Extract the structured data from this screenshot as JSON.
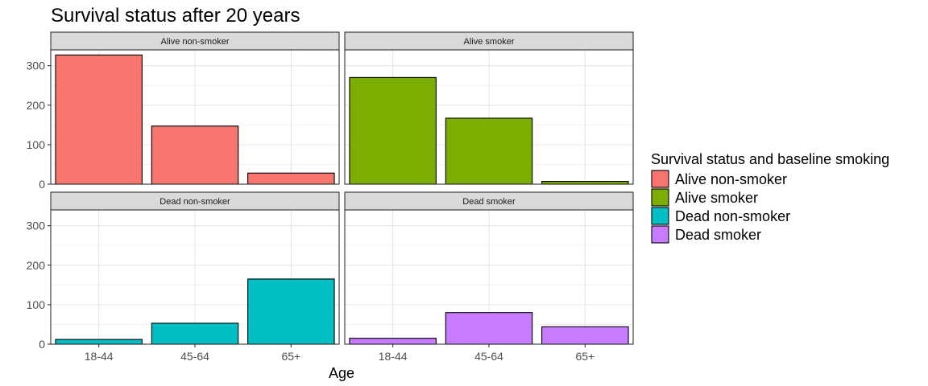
{
  "chart_data": {
    "type": "bar",
    "title": "Survival status after 20 years",
    "xlabel": "Age",
    "ylabel": "",
    "ylim": [
      0,
      340
    ],
    "yticks": [
      0,
      100,
      200,
      300
    ],
    "categories": [
      "18-44",
      "45-64",
      "65+"
    ],
    "facets": [
      {
        "name": "Alive non-smoker",
        "color": "#F8766D",
        "values": [
          327,
          147,
          28
        ]
      },
      {
        "name": "Alive smoker",
        "color": "#7CAE00",
        "values": [
          270,
          167,
          7
        ]
      },
      {
        "name": "Dead non-smoker",
        "color": "#00BFC4",
        "values": [
          12,
          53,
          165
        ]
      },
      {
        "name": "Dead smoker",
        "color": "#C77CFF",
        "values": [
          15,
          80,
          44
        ]
      }
    ],
    "legend": {
      "title": "Survival status and baseline smoking",
      "position": "right",
      "items": [
        "Alive non-smoker",
        "Alive smoker",
        "Dead non-smoker",
        "Dead smoker"
      ]
    },
    "grid": true
  }
}
